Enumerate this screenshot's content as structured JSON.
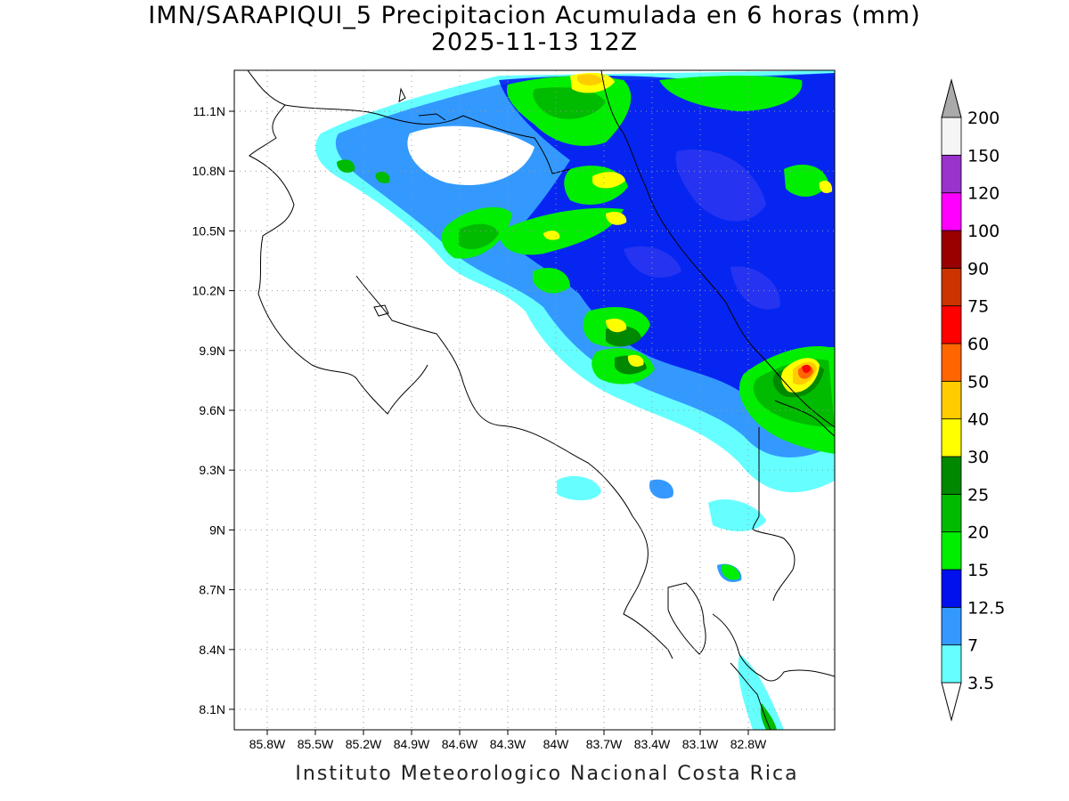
{
  "title": {
    "line1": "IMN/SARAPIQUI_5 Precipitacion Acumulada en 6 horas (mm)",
    "line2": "2025-11-13 12Z"
  },
  "footer": "Instituto Meteorologico Nacional Costa Rica",
  "map": {
    "lon_range": [
      -86.1,
      -82.65
    ],
    "lat_range": [
      7.98,
      11.3
    ],
    "x_ticks": [
      "85.8W",
      "85.5W",
      "85.2W",
      "84.9W",
      "84.6W",
      "84.3W",
      "84W",
      "83.7W",
      "83.4W",
      "83.1W",
      "82.8W"
    ],
    "y_ticks": [
      "11.1N",
      "10.8N",
      "10.5N",
      "10.2N",
      "9.9N",
      "9.6N",
      "9.3N",
      "9N",
      "8.7N",
      "8.4N",
      "8.1N"
    ],
    "grid": true
  },
  "colorbar": {
    "levels": [
      "3.5",
      "7",
      "12.5",
      "15",
      "20",
      "25",
      "30",
      "40",
      "50",
      "60",
      "75",
      "90",
      "100",
      "120",
      "150",
      "200"
    ],
    "colors": [
      "#66ffff",
      "#3399ff",
      "#0011ee",
      "#00ee00",
      "#00bb00",
      "#008800",
      "#ffff00",
      "#ffcc00",
      "#ff6600",
      "#ff0000",
      "#cc3300",
      "#990000",
      "#ff00ff",
      "#9933cc",
      "#f5f5f5"
    ],
    "over_color": "#aaaaaa",
    "under_color": "#ffffff"
  }
}
